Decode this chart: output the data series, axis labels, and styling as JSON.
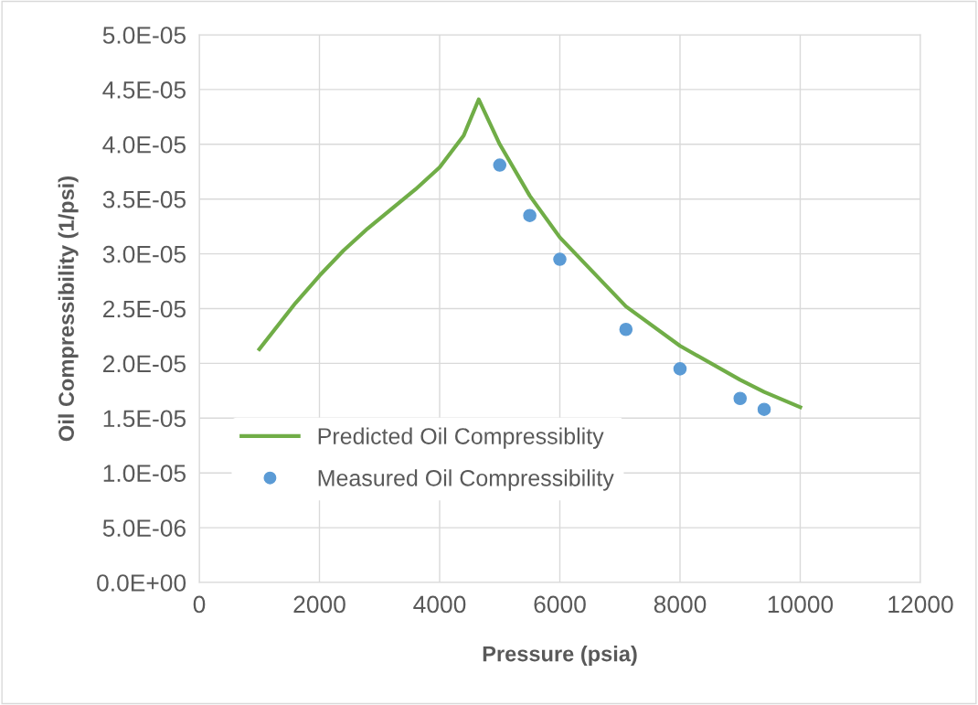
{
  "chart_data": {
    "type": "line",
    "xlabel": "Pressure (psia)",
    "ylabel": "Oil Compressibility (1/psi)",
    "xlim": [
      0,
      12000
    ],
    "xticks": [
      0,
      2000,
      4000,
      6000,
      8000,
      10000,
      12000
    ],
    "ylim": [
      0,
      5e-05
    ],
    "yticks": [
      {
        "value": 0,
        "label": "0.0E+00"
      },
      {
        "value": 5e-06,
        "label": "5.0E-06"
      },
      {
        "value": 1e-05,
        "label": "1.0E-05"
      },
      {
        "value": 1.5e-05,
        "label": "1.5E-05"
      },
      {
        "value": 2e-05,
        "label": "2.0E-05"
      },
      {
        "value": 2.5e-05,
        "label": "2.5E-05"
      },
      {
        "value": 3e-05,
        "label": "3.0E-05"
      },
      {
        "value": 3.5e-05,
        "label": "3.5E-05"
      },
      {
        "value": 4e-05,
        "label": "4.0E-05"
      },
      {
        "value": 4.5e-05,
        "label": "4.5E-05"
      },
      {
        "value": 5e-05,
        "label": "5.0E-05"
      }
    ],
    "grid": true,
    "legend": "bottom left",
    "series": [
      {
        "name": "Predicted Oil Compressiblity",
        "color": "#70ad47",
        "marker": "none",
        "line_style": "solid",
        "x": [
          1000,
          1600,
          2000,
          2400,
          2800,
          3600,
          4000,
          4400,
          4650,
          5000,
          5500,
          6000,
          7100,
          8000,
          9000,
          9400,
          10000
        ],
        "values": [
          2.13e-05,
          2.55e-05,
          2.8e-05,
          3.03e-05,
          3.23e-05,
          3.59e-05,
          3.79e-05,
          4.08e-05,
          4.41e-05,
          4e-05,
          3.53e-05,
          3.15e-05,
          2.52e-05,
          2.16e-05,
          1.85e-05,
          1.74e-05,
          1.6e-05
        ]
      },
      {
        "name": "Measured Oil Compressibility",
        "type": "scatter",
        "color": "#5b9bd5",
        "marker": "circle",
        "x": [
          5000,
          5500,
          6000,
          7100,
          8000,
          9000,
          9400
        ],
        "values": [
          3.81e-05,
          3.35e-05,
          2.95e-05,
          2.31e-05,
          1.95e-05,
          1.68e-05,
          1.58e-05
        ]
      }
    ]
  }
}
